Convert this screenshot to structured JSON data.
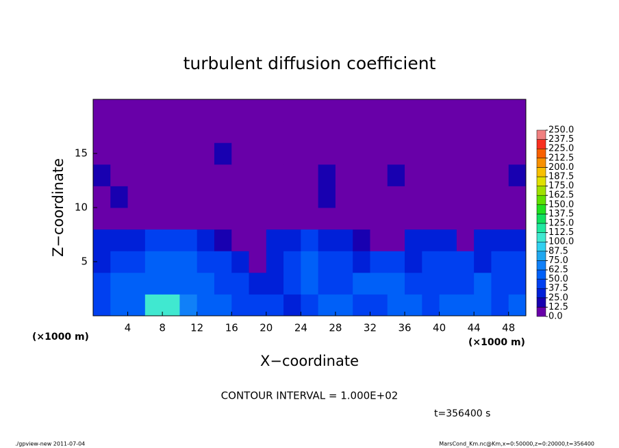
{
  "chart_data": {
    "type": "heatmap",
    "title": "turbulent diffusion coefficient",
    "xlabel": "X−coordinate",
    "ylabel": "Z−coordinate",
    "x_unit": "(×1000 m)",
    "y_unit": "(×1000 m)",
    "xlim": [
      0,
      50
    ],
    "ylim": [
      0,
      20
    ],
    "xticks": [
      4,
      8,
      12,
      16,
      20,
      24,
      28,
      32,
      36,
      40,
      44,
      48
    ],
    "yticks": [
      5,
      10,
      15
    ],
    "x": [
      1,
      3,
      5,
      7,
      9,
      11,
      13,
      15,
      17,
      19,
      21,
      23,
      25,
      27,
      29,
      31,
      33,
      35,
      37,
      39,
      41,
      43,
      45,
      47,
      49
    ],
    "y": [
      1,
      3,
      5,
      7,
      9,
      11,
      13,
      15,
      17,
      19
    ],
    "z": [
      [
        45,
        55,
        60,
        100,
        100,
        70,
        55,
        50,
        45,
        40,
        45,
        35,
        45,
        50,
        50,
        45,
        45,
        50,
        55,
        45,
        50,
        55,
        50,
        45,
        50
      ],
      [
        40,
        50,
        55,
        60,
        62,
        55,
        50,
        45,
        40,
        35,
        30,
        45,
        50,
        45,
        40,
        55,
        50,
        50,
        45,
        45,
        40,
        45,
        50,
        45,
        40
      ],
      [
        35,
        40,
        45,
        50,
        55,
        50,
        45,
        40,
        30,
        10,
        35,
        45,
        50,
        45,
        40,
        35,
        40,
        45,
        35,
        40,
        45,
        40,
        35,
        40,
        45
      ],
      [
        30,
        35,
        35,
        40,
        45,
        40,
        35,
        15,
        0,
        0,
        25,
        35,
        40,
        30,
        30,
        20,
        0,
        0,
        25,
        30,
        30,
        0,
        30,
        35,
        35
      ],
      [
        10,
        5,
        5,
        10,
        5,
        0,
        0,
        0,
        0,
        0,
        0,
        0,
        5,
        0,
        0,
        0,
        0,
        0,
        0,
        0,
        0,
        0,
        0,
        0,
        0
      ],
      [
        10,
        15,
        10,
        0,
        0,
        0,
        10,
        5,
        0,
        0,
        0,
        0,
        0,
        15,
        5,
        0,
        0,
        10,
        0,
        10,
        0,
        0,
        0,
        5,
        10
      ],
      [
        15,
        0,
        10,
        5,
        0,
        10,
        5,
        0,
        0,
        5,
        0,
        0,
        0,
        15,
        10,
        0,
        10,
        15,
        0,
        0,
        5,
        10,
        0,
        5,
        15
      ],
      [
        0,
        0,
        0,
        0,
        0,
        0,
        0,
        20,
        5,
        0,
        0,
        0,
        0,
        0,
        0,
        0,
        0,
        0,
        0,
        0,
        0,
        0,
        0,
        0,
        0
      ],
      [
        0,
        0,
        0,
        0,
        0,
        0,
        0,
        0,
        0,
        0,
        0,
        0,
        0,
        0,
        0,
        0,
        0,
        0,
        0,
        0,
        0,
        0,
        0,
        0,
        0
      ],
      [
        0,
        0,
        0,
        0,
        0,
        0,
        0,
        0,
        0,
        0,
        0,
        0,
        0,
        0,
        0,
        0,
        0,
        0,
        0,
        0,
        0,
        0,
        0,
        0,
        0
      ]
    ],
    "colorbar_ticks": [
      {
        "value": 0,
        "label": "0.0"
      },
      {
        "value": 12.5,
        "label": "12.5"
      },
      {
        "value": 25,
        "label": "25.0"
      },
      {
        "value": 37.5,
        "label": "37.5"
      },
      {
        "value": 50,
        "label": "50.0"
      },
      {
        "value": 62.5,
        "label": "62.5"
      },
      {
        "value": 75,
        "label": "75.0"
      },
      {
        "value": 87.5,
        "label": "87.5"
      },
      {
        "value": 100,
        "label": "100.0"
      },
      {
        "value": 112.5,
        "label": "112.5"
      },
      {
        "value": 125,
        "label": "125.0"
      },
      {
        "value": 137.5,
        "label": "137.5"
      },
      {
        "value": 150,
        "label": "150.0"
      },
      {
        "value": 162.5,
        "label": "162.5"
      },
      {
        "value": 175,
        "label": "175.0"
      },
      {
        "value": 187.5,
        "label": "187.5"
      },
      {
        "value": 200,
        "label": "200.0"
      },
      {
        "value": 212.5,
        "label": "212.5"
      },
      {
        "value": 225,
        "label": "225.0"
      },
      {
        "value": 237.5,
        "label": "237.5"
      },
      {
        "value": 250,
        "label": "250.0"
      }
    ],
    "colors": [
      "#6800a8",
      "#1800b0",
      "#0020d8",
      "#0040f0",
      "#0060f8",
      "#1080f8",
      "#20a8f0",
      "#30d0f0",
      "#40e8d0",
      "#20e8a0",
      "#10e060",
      "#20e020",
      "#60e000",
      "#a0e000",
      "#e0e000",
      "#f8c000",
      "#f89000",
      "#f86000",
      "#f83020",
      "#f08080"
    ],
    "contour_interval": "CONTOUR INTERVAL = 1.000E+02",
    "time_label": "t=356400 s",
    "footer_left": "./gpview-new  2011-07-04",
    "footer_right": "MarsCond_Km.nc@Km,x=0:50000,z=0:20000,t=356400"
  }
}
